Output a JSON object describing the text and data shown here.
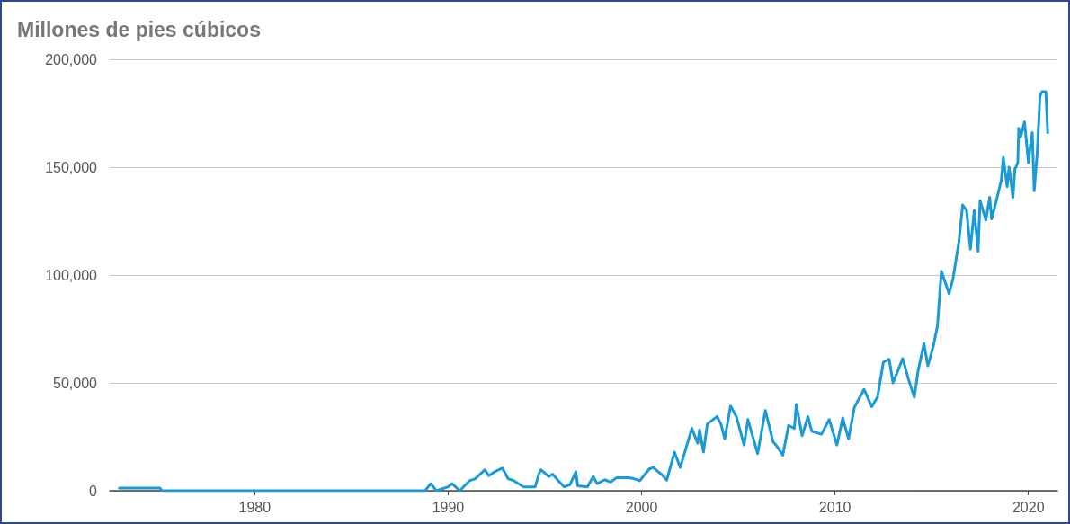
{
  "chart_data": {
    "type": "line",
    "title": "Millones de pies cúbicos",
    "x": [
      1973.0,
      1975.1,
      1975.2,
      1988.8,
      1989.1,
      1989.4,
      1990.0,
      1990.2,
      1990.6,
      1991.1,
      1991.4,
      1991.9,
      1992.1,
      1992.4,
      1992.8,
      1993.1,
      1993.4,
      1993.9,
      1994.5,
      1994.7,
      1994.8,
      1995.2,
      1995.4,
      1995.7,
      1996.0,
      1996.3,
      1996.6,
      1996.7,
      1997.2,
      1997.5,
      1997.7,
      1998.1,
      1998.4,
      1998.7,
      1999.3,
      1999.6,
      1999.9,
      2000.4,
      2000.6,
      2001.1,
      2001.3,
      2001.7,
      2002.0,
      2002.6,
      2002.9,
      2003.0,
      2003.2,
      2003.4,
      2003.9,
      2004.1,
      2004.3,
      2004.6,
      2004.9,
      2005.3,
      2005.5,
      2006.0,
      2006.4,
      2006.8,
      2007.0,
      2007.3,
      2007.6,
      2007.9,
      2008.0,
      2008.3,
      2008.6,
      2008.8,
      2009.3,
      2009.7,
      2010.1,
      2010.4,
      2010.7,
      2011.0,
      2011.5,
      2011.9,
      2012.2,
      2012.5,
      2012.8,
      2013.0,
      2013.4,
      2013.5,
      2013.8,
      2014.1,
      2014.3,
      2014.6,
      2014.8,
      2015.1,
      2015.3,
      2015.5,
      2015.9,
      2016.1,
      2016.4,
      2016.6,
      2016.8,
      2017.0,
      2017.2,
      2017.4,
      2017.5,
      2017.8,
      2018.0,
      2018.1,
      2018.3,
      2018.6,
      2018.7,
      2018.9,
      2019.0,
      2019.2,
      2019.3,
      2019.45,
      2019.5,
      2019.6,
      2019.8,
      2020.0,
      2020.1,
      2020.2,
      2020.3,
      2020.45,
      2020.6,
      2020.7,
      2020.9,
      2021.0
    ],
    "series": [
      {
        "color": "#1a9ad6",
        "values": [
          1200,
          1200,
          0,
          0,
          3300,
          0,
          1800,
          3300,
          0,
          4600,
          5600,
          9700,
          7000,
          8800,
          10500,
          5600,
          4600,
          1800,
          1800,
          8100,
          9700,
          6600,
          7700,
          4600,
          1800,
          2800,
          8800,
          2300,
          1800,
          6600,
          3300,
          5100,
          4000,
          6000,
          6000,
          5600,
          4600,
          10100,
          10800,
          7000,
          4900,
          17900,
          10800,
          28900,
          22000,
          28200,
          17900,
          31000,
          34400,
          31000,
          24100,
          39300,
          34400,
          21200,
          33000,
          17200,
          37200,
          22700,
          20600,
          16500,
          30300,
          28900,
          40000,
          25500,
          34400,
          27600,
          26200,
          33000,
          21200,
          33700,
          24100,
          38600,
          47000,
          39000,
          43400,
          59600,
          61000,
          50000,
          59000,
          61300,
          51600,
          43300,
          55800,
          68300,
          57900,
          67600,
          76600,
          101800,
          91400,
          98300,
          115000,
          132500,
          130000,
          112000,
          130000,
          111000,
          134500,
          125500,
          136000,
          126000,
          133000,
          144000,
          154600,
          141000,
          150000,
          136000,
          149000,
          152000,
          168000,
          164000,
          171000,
          152000,
          160000,
          166000,
          139000,
          156000,
          183000,
          185000,
          185000,
          166000
        ]
      }
    ],
    "xlim": [
      1972.5,
      2021.5
    ],
    "xticks": [
      1980,
      1990,
      2000,
      2010,
      2020
    ],
    "ylim": [
      0,
      200000
    ],
    "yticks": [
      {
        "value": 0,
        "label": "0"
      },
      {
        "value": 50000,
        "label": "50,000"
      },
      {
        "value": 100000,
        "label": "100,000"
      },
      {
        "value": 150000,
        "label": "150,000"
      },
      {
        "value": 200000,
        "label": "200,000"
      }
    ],
    "grid": "y",
    "marker": "none",
    "line_style": "solid"
  }
}
